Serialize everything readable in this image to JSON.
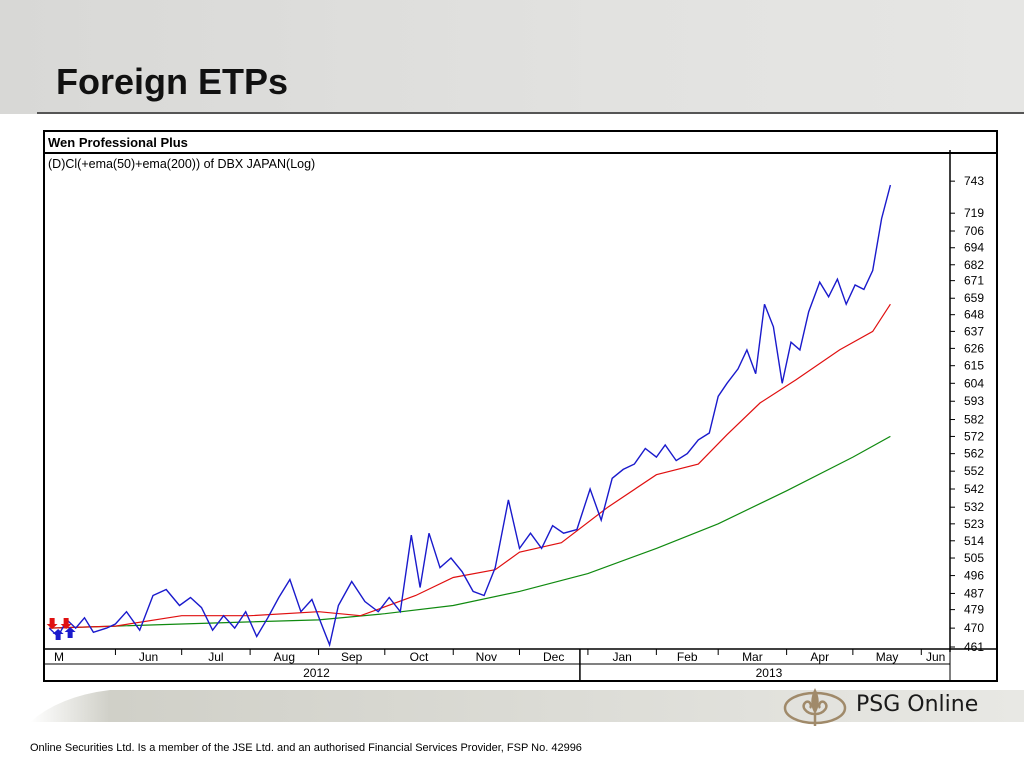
{
  "slide": {
    "title": "Foreign ETPs",
    "disclaimer": "Online Securities Ltd. Is a member of the JSE Ltd. and an authorised Financial Services Provider, FSP No. 42996",
    "logo_text": "PSG Online"
  },
  "colors": {
    "price": "#1a1acc",
    "ema50": "#e01010",
    "ema200": "#108a10",
    "marker_red": "#e01010",
    "marker_blue": "#1a1acc"
  },
  "chart_data": {
    "type": "line",
    "window_title": "Wen Professional Plus",
    "title": "(D)Cl(+ema(50)+ema(200)) of DBX JAPAN(Log)",
    "y_scale": "log",
    "y_ticks": [
      461,
      470,
      479,
      487,
      496,
      505,
      514,
      523,
      532,
      542,
      552,
      562,
      572,
      582,
      593,
      604,
      615,
      626,
      637,
      648,
      659,
      671,
      682,
      694,
      706,
      719,
      743
    ],
    "ylim": [
      461,
      750
    ],
    "xlim": [
      "2012-05-01",
      "2013-06-14"
    ],
    "x_month_ticks": [
      "M",
      "Jun",
      "Jul",
      "Aug",
      "Sep",
      "Oct",
      "Nov",
      "Dec",
      "Jan",
      "Feb",
      "Mar",
      "Apr",
      "May",
      "Jun"
    ],
    "x_years": [
      "2012",
      "2013"
    ],
    "grid": false,
    "series": [
      {
        "key": "price",
        "values": [
          [
            "2012-05-02",
            470
          ],
          [
            "2012-05-06",
            466
          ],
          [
            "2012-05-10",
            474
          ],
          [
            "2012-05-14",
            470
          ],
          [
            "2012-05-18",
            475
          ],
          [
            "2012-05-22",
            468
          ],
          [
            "2012-05-28",
            470
          ],
          [
            "2012-06-01",
            472
          ],
          [
            "2012-06-06",
            478
          ],
          [
            "2012-06-12",
            469
          ],
          [
            "2012-06-18",
            486
          ],
          [
            "2012-06-24",
            489
          ],
          [
            "2012-06-30",
            481
          ],
          [
            "2012-07-05",
            485
          ],
          [
            "2012-07-10",
            480
          ],
          [
            "2012-07-15",
            469
          ],
          [
            "2012-07-20",
            476
          ],
          [
            "2012-07-25",
            470
          ],
          [
            "2012-07-30",
            478
          ],
          [
            "2012-08-04",
            466
          ],
          [
            "2012-08-09",
            475
          ],
          [
            "2012-08-14",
            485
          ],
          [
            "2012-08-19",
            494
          ],
          [
            "2012-08-24",
            478
          ],
          [
            "2012-08-29",
            484
          ],
          [
            "2012-09-03",
            470
          ],
          [
            "2012-09-06",
            462
          ],
          [
            "2012-09-10",
            481
          ],
          [
            "2012-09-16",
            493
          ],
          [
            "2012-09-22",
            483
          ],
          [
            "2012-09-28",
            478
          ],
          [
            "2012-10-03",
            485
          ],
          [
            "2012-10-08",
            478
          ],
          [
            "2012-10-13",
            517
          ],
          [
            "2012-10-17",
            490
          ],
          [
            "2012-10-21",
            518
          ],
          [
            "2012-10-26",
            500
          ],
          [
            "2012-10-31",
            505
          ],
          [
            "2012-11-05",
            498
          ],
          [
            "2012-11-10",
            488
          ],
          [
            "2012-11-15",
            486
          ],
          [
            "2012-11-20",
            500
          ],
          [
            "2012-11-26",
            536
          ],
          [
            "2012-12-01",
            510
          ],
          [
            "2012-12-06",
            518
          ],
          [
            "2012-12-11",
            510
          ],
          [
            "2012-12-16",
            522
          ],
          [
            "2012-12-21",
            518
          ],
          [
            "2012-12-27",
            520
          ],
          [
            "2013-01-02",
            542
          ],
          [
            "2013-01-07",
            525
          ],
          [
            "2013-01-12",
            548
          ],
          [
            "2013-01-17",
            553
          ],
          [
            "2013-01-22",
            556
          ],
          [
            "2013-01-27",
            565
          ],
          [
            "2013-02-01",
            560
          ],
          [
            "2013-02-05",
            567
          ],
          [
            "2013-02-10",
            558
          ],
          [
            "2013-02-15",
            562
          ],
          [
            "2013-02-20",
            570
          ],
          [
            "2013-02-25",
            574
          ],
          [
            "2013-03-01",
            596
          ],
          [
            "2013-03-05",
            604
          ],
          [
            "2013-03-10",
            613
          ],
          [
            "2013-03-14",
            625
          ],
          [
            "2013-03-18",
            610
          ],
          [
            "2013-03-22",
            655
          ],
          [
            "2013-03-26",
            640
          ],
          [
            "2013-03-30",
            604
          ],
          [
            "2013-04-03",
            630
          ],
          [
            "2013-04-07",
            625
          ],
          [
            "2013-04-11",
            650
          ],
          [
            "2013-04-16",
            670
          ],
          [
            "2013-04-20",
            660
          ],
          [
            "2013-04-24",
            672
          ],
          [
            "2013-04-28",
            655
          ],
          [
            "2013-05-02",
            668
          ],
          [
            "2013-05-06",
            665
          ],
          [
            "2013-05-10",
            678
          ],
          [
            "2013-05-14",
            715
          ],
          [
            "2013-05-18",
            740
          ]
        ]
      },
      {
        "key": "ema50",
        "values": [
          [
            "2012-05-02",
            470
          ],
          [
            "2012-06-01",
            471
          ],
          [
            "2012-07-01",
            476
          ],
          [
            "2012-08-01",
            476
          ],
          [
            "2012-09-01",
            478
          ],
          [
            "2012-09-20",
            476
          ],
          [
            "2012-10-15",
            486
          ],
          [
            "2012-11-01",
            495
          ],
          [
            "2012-11-20",
            499
          ],
          [
            "2012-12-01",
            508
          ],
          [
            "2012-12-20",
            513
          ],
          [
            "2013-01-10",
            532
          ],
          [
            "2013-02-01",
            550
          ],
          [
            "2013-02-20",
            556
          ],
          [
            "2013-03-05",
            573
          ],
          [
            "2013-03-20",
            592
          ],
          [
            "2013-04-05",
            606
          ],
          [
            "2013-04-25",
            625
          ],
          [
            "2013-05-10",
            637
          ],
          [
            "2013-05-18",
            655
          ]
        ]
      },
      {
        "key": "ema200",
        "values": [
          [
            "2012-05-02",
            470
          ],
          [
            "2012-06-01",
            471
          ],
          [
            "2012-07-01",
            472
          ],
          [
            "2012-08-01",
            473
          ],
          [
            "2012-09-01",
            474
          ],
          [
            "2012-10-01",
            477
          ],
          [
            "2012-11-01",
            481
          ],
          [
            "2012-12-01",
            488
          ],
          [
            "2013-01-01",
            497
          ],
          [
            "2013-02-01",
            510
          ],
          [
            "2013-03-01",
            523
          ],
          [
            "2013-04-01",
            541
          ],
          [
            "2013-05-01",
            560
          ],
          [
            "2013-05-18",
            572
          ]
        ]
      }
    ]
  }
}
